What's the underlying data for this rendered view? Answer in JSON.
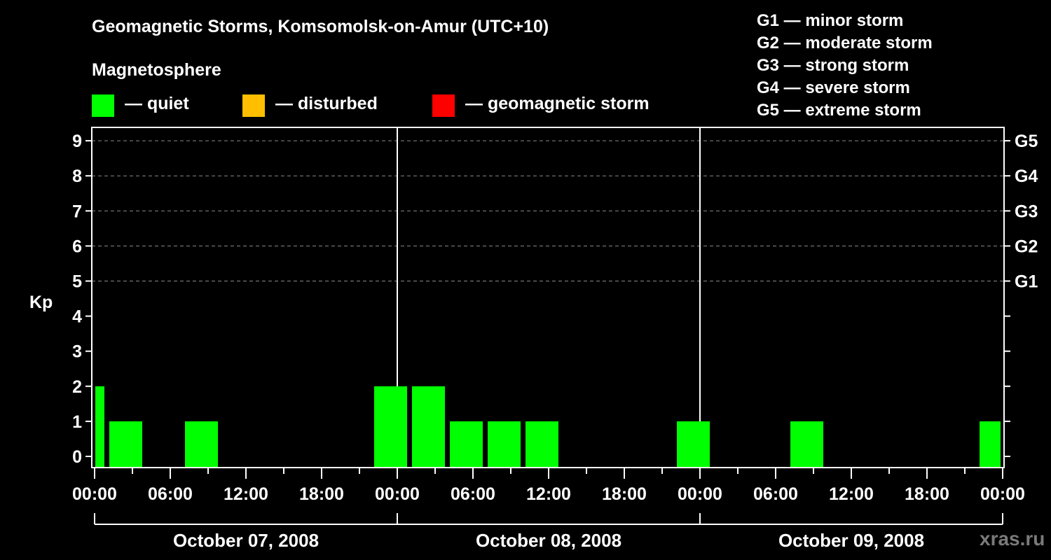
{
  "header": {
    "title": "Geomagnetic Storms, Komsomolsk-on-Amur (UTC+10)",
    "subtitle": "Magnetosphere"
  },
  "legend": [
    {
      "label": "— quiet",
      "color": "#00FF00"
    },
    {
      "label": "— disturbed",
      "color": "#FFBF00"
    },
    {
      "label": "— geomagnetic storm",
      "color": "#FF0000"
    }
  ],
  "storm_scale": [
    "G1 — minor storm",
    "G2 — moderate storm",
    "G3 — strong storm",
    "G4 — severe storm",
    "G5 — extreme storm"
  ],
  "watermark": "xras.ru",
  "chart_data": {
    "type": "bar",
    "title": "Geomagnetic Storms, Komsomolsk-on-Amur (UTC+10)",
    "subtitle": "Magnetosphere",
    "xlabel": "",
    "ylabel": "Kp",
    "ylim": [
      -0.3,
      9.6
    ],
    "yticks": [
      0,
      1,
      2,
      3,
      4,
      5,
      6,
      7,
      8,
      9
    ],
    "right_axis_labels": [
      {
        "kp": 5,
        "label": "G1"
      },
      {
        "kp": 6,
        "label": "G2"
      },
      {
        "kp": 7,
        "label": "G3"
      },
      {
        "kp": 8,
        "label": "G4"
      },
      {
        "kp": 9,
        "label": "G5"
      }
    ],
    "grid": {
      "y_dashed_from": 5,
      "y_dashed_to": 9
    },
    "xtick_labels": [
      "00:00",
      "06:00",
      "12:00",
      "18:00",
      "00:00",
      "06:00",
      "12:00",
      "18:00",
      "00:00",
      "06:00",
      "12:00",
      "18:00",
      "00:00"
    ],
    "day_labels": [
      "October 07, 2008",
      "October 08, 2008",
      "October 09, 2008"
    ],
    "x_range_hours": [
      0,
      72
    ],
    "bin_hours": 3,
    "bin_offset_hours": -2,
    "categories": [
      "Oct 06 22:00",
      "Oct 07 01:00",
      "Oct 07 04:00",
      "Oct 07 07:00",
      "Oct 07 10:00",
      "Oct 07 13:00",
      "Oct 07 16:00",
      "Oct 07 19:00",
      "Oct 07 22:00",
      "Oct 08 01:00",
      "Oct 08 04:00",
      "Oct 08 07:00",
      "Oct 08 10:00",
      "Oct 08 13:00",
      "Oct 08 16:00",
      "Oct 08 19:00",
      "Oct 08 22:00",
      "Oct 09 01:00",
      "Oct 09 04:00",
      "Oct 09 07:00",
      "Oct 09 10:00",
      "Oct 09 13:00",
      "Oct 09 16:00",
      "Oct 09 19:00",
      "Oct 09 22:00"
    ],
    "values": [
      2,
      1,
      0,
      1,
      0,
      0,
      0,
      0,
      2,
      2,
      1,
      1,
      1,
      0,
      0,
      0,
      1,
      0,
      0,
      1,
      0,
      0,
      0,
      0,
      1
    ],
    "bar_color": "#00FF00",
    "status_thresholds": {
      "quiet": "< 4",
      "disturbed": "4",
      "storm": ">= 5"
    }
  }
}
